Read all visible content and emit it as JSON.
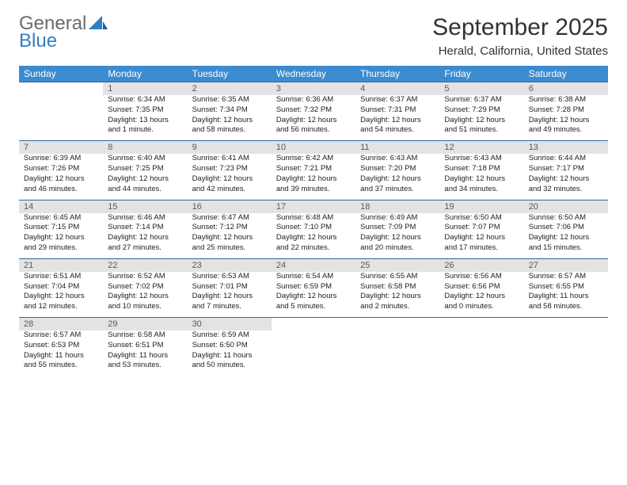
{
  "logo": {
    "general": "General",
    "blue": "Blue"
  },
  "title": "September 2025",
  "location": "Herald, California, United States",
  "day_headers": [
    "Sunday",
    "Monday",
    "Tuesday",
    "Wednesday",
    "Thursday",
    "Friday",
    "Saturday"
  ],
  "colors": {
    "header_bg": "#3b8bd0",
    "header_text": "#ffffff",
    "daynum_bg": "#e3e3e3",
    "daynum_text": "#5a5a5a",
    "rule": "#2f6aa3",
    "logo_general": "#6b6b6b",
    "logo_blue": "#2f7fc4"
  },
  "weeks": [
    [
      null,
      {
        "n": "1",
        "sr": "Sunrise: 6:34 AM",
        "ss": "Sunset: 7:35 PM",
        "dl": "Daylight: 13 hours and 1 minute."
      },
      {
        "n": "2",
        "sr": "Sunrise: 6:35 AM",
        "ss": "Sunset: 7:34 PM",
        "dl": "Daylight: 12 hours and 58 minutes."
      },
      {
        "n": "3",
        "sr": "Sunrise: 6:36 AM",
        "ss": "Sunset: 7:32 PM",
        "dl": "Daylight: 12 hours and 56 minutes."
      },
      {
        "n": "4",
        "sr": "Sunrise: 6:37 AM",
        "ss": "Sunset: 7:31 PM",
        "dl": "Daylight: 12 hours and 54 minutes."
      },
      {
        "n": "5",
        "sr": "Sunrise: 6:37 AM",
        "ss": "Sunset: 7:29 PM",
        "dl": "Daylight: 12 hours and 51 minutes."
      },
      {
        "n": "6",
        "sr": "Sunrise: 6:38 AM",
        "ss": "Sunset: 7:28 PM",
        "dl": "Daylight: 12 hours and 49 minutes."
      }
    ],
    [
      {
        "n": "7",
        "sr": "Sunrise: 6:39 AM",
        "ss": "Sunset: 7:26 PM",
        "dl": "Daylight: 12 hours and 46 minutes."
      },
      {
        "n": "8",
        "sr": "Sunrise: 6:40 AM",
        "ss": "Sunset: 7:25 PM",
        "dl": "Daylight: 12 hours and 44 minutes."
      },
      {
        "n": "9",
        "sr": "Sunrise: 6:41 AM",
        "ss": "Sunset: 7:23 PM",
        "dl": "Daylight: 12 hours and 42 minutes."
      },
      {
        "n": "10",
        "sr": "Sunrise: 6:42 AM",
        "ss": "Sunset: 7:21 PM",
        "dl": "Daylight: 12 hours and 39 minutes."
      },
      {
        "n": "11",
        "sr": "Sunrise: 6:43 AM",
        "ss": "Sunset: 7:20 PM",
        "dl": "Daylight: 12 hours and 37 minutes."
      },
      {
        "n": "12",
        "sr": "Sunrise: 6:43 AM",
        "ss": "Sunset: 7:18 PM",
        "dl": "Daylight: 12 hours and 34 minutes."
      },
      {
        "n": "13",
        "sr": "Sunrise: 6:44 AM",
        "ss": "Sunset: 7:17 PM",
        "dl": "Daylight: 12 hours and 32 minutes."
      }
    ],
    [
      {
        "n": "14",
        "sr": "Sunrise: 6:45 AM",
        "ss": "Sunset: 7:15 PM",
        "dl": "Daylight: 12 hours and 29 minutes."
      },
      {
        "n": "15",
        "sr": "Sunrise: 6:46 AM",
        "ss": "Sunset: 7:14 PM",
        "dl": "Daylight: 12 hours and 27 minutes."
      },
      {
        "n": "16",
        "sr": "Sunrise: 6:47 AM",
        "ss": "Sunset: 7:12 PM",
        "dl": "Daylight: 12 hours and 25 minutes."
      },
      {
        "n": "17",
        "sr": "Sunrise: 6:48 AM",
        "ss": "Sunset: 7:10 PM",
        "dl": "Daylight: 12 hours and 22 minutes."
      },
      {
        "n": "18",
        "sr": "Sunrise: 6:49 AM",
        "ss": "Sunset: 7:09 PM",
        "dl": "Daylight: 12 hours and 20 minutes."
      },
      {
        "n": "19",
        "sr": "Sunrise: 6:50 AM",
        "ss": "Sunset: 7:07 PM",
        "dl": "Daylight: 12 hours and 17 minutes."
      },
      {
        "n": "20",
        "sr": "Sunrise: 6:50 AM",
        "ss": "Sunset: 7:06 PM",
        "dl": "Daylight: 12 hours and 15 minutes."
      }
    ],
    [
      {
        "n": "21",
        "sr": "Sunrise: 6:51 AM",
        "ss": "Sunset: 7:04 PM",
        "dl": "Daylight: 12 hours and 12 minutes."
      },
      {
        "n": "22",
        "sr": "Sunrise: 6:52 AM",
        "ss": "Sunset: 7:02 PM",
        "dl": "Daylight: 12 hours and 10 minutes."
      },
      {
        "n": "23",
        "sr": "Sunrise: 6:53 AM",
        "ss": "Sunset: 7:01 PM",
        "dl": "Daylight: 12 hours and 7 minutes."
      },
      {
        "n": "24",
        "sr": "Sunrise: 6:54 AM",
        "ss": "Sunset: 6:59 PM",
        "dl": "Daylight: 12 hours and 5 minutes."
      },
      {
        "n": "25",
        "sr": "Sunrise: 6:55 AM",
        "ss": "Sunset: 6:58 PM",
        "dl": "Daylight: 12 hours and 2 minutes."
      },
      {
        "n": "26",
        "sr": "Sunrise: 6:56 AM",
        "ss": "Sunset: 6:56 PM",
        "dl": "Daylight: 12 hours and 0 minutes."
      },
      {
        "n": "27",
        "sr": "Sunrise: 6:57 AM",
        "ss": "Sunset: 6:55 PM",
        "dl": "Daylight: 11 hours and 58 minutes."
      }
    ],
    [
      {
        "n": "28",
        "sr": "Sunrise: 6:57 AM",
        "ss": "Sunset: 6:53 PM",
        "dl": "Daylight: 11 hours and 55 minutes."
      },
      {
        "n": "29",
        "sr": "Sunrise: 6:58 AM",
        "ss": "Sunset: 6:51 PM",
        "dl": "Daylight: 11 hours and 53 minutes."
      },
      {
        "n": "30",
        "sr": "Sunrise: 6:59 AM",
        "ss": "Sunset: 6:50 PM",
        "dl": "Daylight: 11 hours and 50 minutes."
      },
      null,
      null,
      null,
      null
    ]
  ]
}
